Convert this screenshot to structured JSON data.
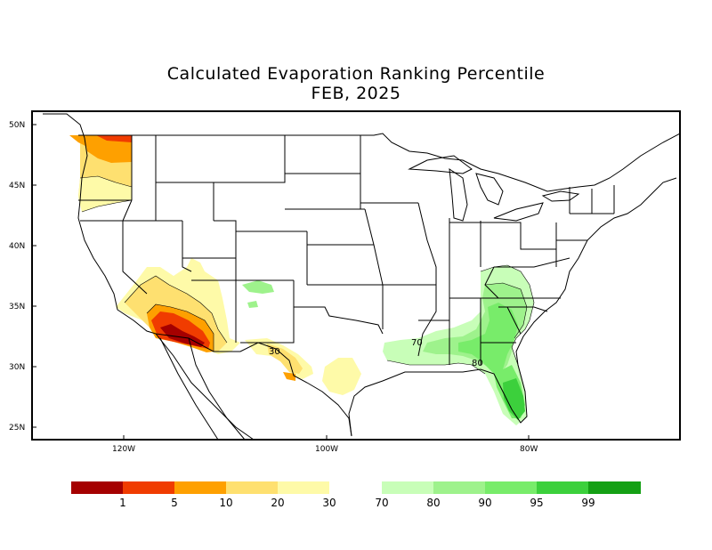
{
  "title": "Calculated Evaporation Ranking Percentile",
  "subtitle": "FEB, 2025",
  "axes": {
    "lat_labels": [
      "50N",
      "45N",
      "40N",
      "35N",
      "30N",
      "25N"
    ],
    "lon_labels": [
      "120W",
      "100W",
      "80W"
    ]
  },
  "contour_labels": [
    "30",
    "70",
    "80"
  ],
  "legend": {
    "dry": [
      {
        "color": "#a50000"
      },
      {
        "color": "#f03c00"
      },
      {
        "color": "#fea000"
      },
      {
        "color": "#fee070"
      },
      {
        "color": "#fefaa8"
      }
    ],
    "wet": [
      {
        "color": "#c8feb8"
      },
      {
        "color": "#9ef28c"
      },
      {
        "color": "#78ec6a"
      },
      {
        "color": "#3cd03c"
      },
      {
        "color": "#14a014"
      }
    ],
    "labels_dry": [
      "1",
      "5",
      "10",
      "20",
      "30"
    ],
    "labels_wet": [
      "70",
      "80",
      "90",
      "95",
      "99"
    ]
  }
}
